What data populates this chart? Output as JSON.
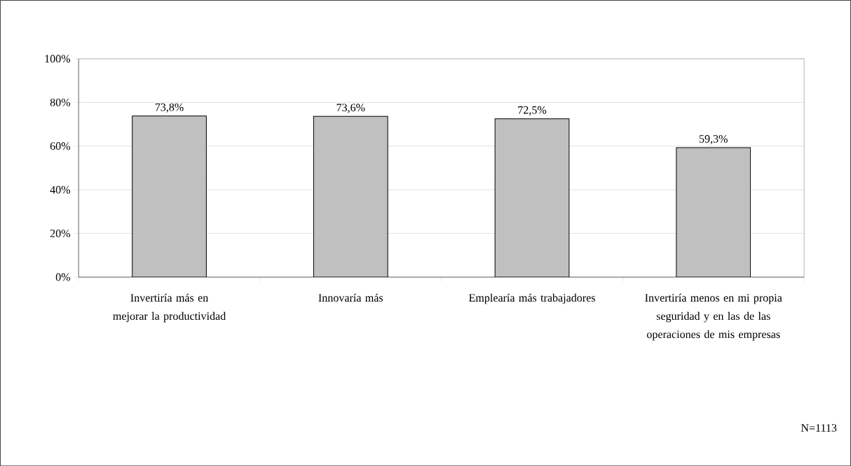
{
  "chart_data": {
    "type": "bar",
    "categories": [
      "Invertiría más en mejorar la productividad",
      "Innovaría más",
      "Emplearía más trabajadores",
      "Invertiría menos en mi propia seguridad y en las de las operaciones de mis empresas"
    ],
    "values": [
      73.8,
      73.6,
      72.5,
      59.3
    ],
    "value_labels": [
      "73,8%",
      "73,6%",
      "72,5%",
      "59,3%"
    ],
    "color": "#c0c0c0",
    "ylim": [
      0,
      100
    ],
    "yticks": [
      {
        "value": 0,
        "label": "0%"
      },
      {
        "value": 20,
        "label": "20%"
      },
      {
        "value": 40,
        "label": "40%"
      },
      {
        "value": 60,
        "label": "60%"
      },
      {
        "value": 80,
        "label": "80%"
      },
      {
        "value": 100,
        "label": "100%"
      }
    ],
    "grid": "y",
    "annotations": [
      "N=1113"
    ]
  }
}
